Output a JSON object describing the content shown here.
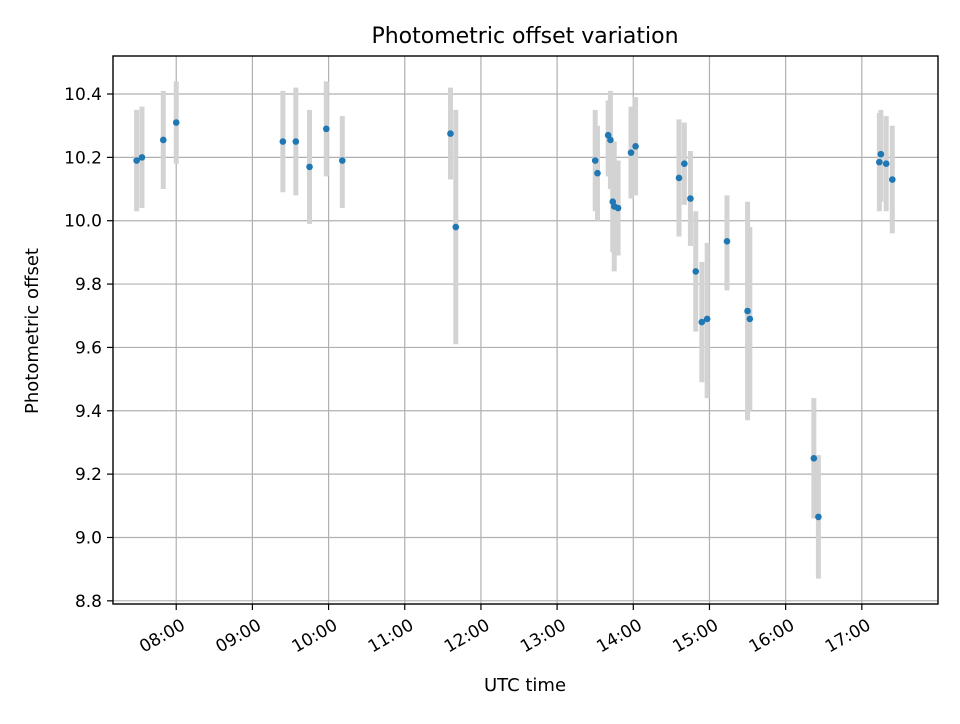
{
  "chart_data": {
    "type": "scatter",
    "title": "Photometric offset variation",
    "xlabel": "UTC time",
    "ylabel": "Photometric offset",
    "x_unit": "hours UTC",
    "xlim": [
      7.17,
      18.0
    ],
    "ylim": [
      8.79,
      10.52
    ],
    "x_ticks": [
      {
        "value": 8,
        "label": "08:00"
      },
      {
        "value": 9,
        "label": "09:00"
      },
      {
        "value": 10,
        "label": "10:00"
      },
      {
        "value": 11,
        "label": "11:00"
      },
      {
        "value": 12,
        "label": "12:00"
      },
      {
        "value": 13,
        "label": "13:00"
      },
      {
        "value": 14,
        "label": "14:00"
      },
      {
        "value": 15,
        "label": "15:00"
      },
      {
        "value": 16,
        "label": "16:00"
      },
      {
        "value": 17,
        "label": "17:00"
      }
    ],
    "y_ticks": [
      {
        "value": 8.8,
        "label": "8.8"
      },
      {
        "value": 9.0,
        "label": "9.0"
      },
      {
        "value": 9.2,
        "label": "9.2"
      },
      {
        "value": 9.4,
        "label": "9.4"
      },
      {
        "value": 9.6,
        "label": "9.6"
      },
      {
        "value": 9.8,
        "label": "9.8"
      },
      {
        "value": 10.0,
        "label": "10.0"
      },
      {
        "value": 10.2,
        "label": "10.2"
      },
      {
        "value": 10.4,
        "label": "10.4"
      }
    ],
    "grid": true,
    "marker_color": "#1f77b4",
    "errorbar_color": "#d3d3d3",
    "points": [
      {
        "x": 7.48,
        "y": 10.19,
        "err_low": 10.03,
        "err_high": 10.35
      },
      {
        "x": 7.55,
        "y": 10.2,
        "err_low": 10.04,
        "err_high": 10.36
      },
      {
        "x": 7.83,
        "y": 10.255,
        "err_low": 10.1,
        "err_high": 10.41
      },
      {
        "x": 8.0,
        "y": 10.31,
        "err_low": 10.18,
        "err_high": 10.44
      },
      {
        "x": 9.4,
        "y": 10.25,
        "err_low": 10.09,
        "err_high": 10.41
      },
      {
        "x": 9.57,
        "y": 10.25,
        "err_low": 10.08,
        "err_high": 10.42
      },
      {
        "x": 9.75,
        "y": 10.17,
        "err_low": 9.99,
        "err_high": 10.35
      },
      {
        "x": 9.97,
        "y": 10.29,
        "err_low": 10.14,
        "err_high": 10.44
      },
      {
        "x": 10.18,
        "y": 10.19,
        "err_low": 10.04,
        "err_high": 10.33
      },
      {
        "x": 11.6,
        "y": 10.275,
        "err_low": 10.13,
        "err_high": 10.42
      },
      {
        "x": 11.67,
        "y": 9.98,
        "err_low": 9.61,
        "err_high": 10.35
      },
      {
        "x": 13.5,
        "y": 10.19,
        "err_low": 10.03,
        "err_high": 10.35
      },
      {
        "x": 13.53,
        "y": 10.15,
        "err_low": 10.0,
        "err_high": 10.3
      },
      {
        "x": 13.67,
        "y": 10.27,
        "err_low": 10.14,
        "err_high": 10.38
      },
      {
        "x": 13.7,
        "y": 10.255,
        "err_low": 10.1,
        "err_high": 10.41
      },
      {
        "x": 13.73,
        "y": 10.06,
        "err_low": 9.9,
        "err_high": 10.21
      },
      {
        "x": 13.75,
        "y": 10.045,
        "err_low": 9.84,
        "err_high": 10.25
      },
      {
        "x": 13.8,
        "y": 10.04,
        "err_low": 9.89,
        "err_high": 10.19
      },
      {
        "x": 13.97,
        "y": 10.215,
        "err_low": 10.07,
        "err_high": 10.36
      },
      {
        "x": 14.03,
        "y": 10.235,
        "err_low": 10.08,
        "err_high": 10.39
      },
      {
        "x": 14.6,
        "y": 10.135,
        "err_low": 9.95,
        "err_high": 10.32
      },
      {
        "x": 14.67,
        "y": 10.18,
        "err_low": 10.05,
        "err_high": 10.31
      },
      {
        "x": 14.75,
        "y": 10.07,
        "err_low": 9.92,
        "err_high": 10.22
      },
      {
        "x": 14.82,
        "y": 9.84,
        "err_low": 9.65,
        "err_high": 10.03
      },
      {
        "x": 14.9,
        "y": 9.68,
        "err_low": 9.49,
        "err_high": 9.87
      },
      {
        "x": 14.97,
        "y": 9.69,
        "err_low": 9.44,
        "err_high": 9.93
      },
      {
        "x": 15.23,
        "y": 9.935,
        "err_low": 9.78,
        "err_high": 10.08
      },
      {
        "x": 15.5,
        "y": 9.715,
        "err_low": 9.37,
        "err_high": 10.06
      },
      {
        "x": 15.53,
        "y": 9.69,
        "err_low": 9.4,
        "err_high": 9.98
      },
      {
        "x": 16.37,
        "y": 9.25,
        "err_low": 9.06,
        "err_high": 9.44
      },
      {
        "x": 16.43,
        "y": 9.065,
        "err_low": 8.87,
        "err_high": 9.26
      },
      {
        "x": 17.23,
        "y": 10.185,
        "err_low": 10.03,
        "err_high": 10.34
      },
      {
        "x": 17.25,
        "y": 10.21,
        "err_low": 10.06,
        "err_high": 10.35
      },
      {
        "x": 17.32,
        "y": 10.18,
        "err_low": 10.03,
        "err_high": 10.33
      },
      {
        "x": 17.4,
        "y": 10.13,
        "err_low": 9.96,
        "err_high": 10.3
      }
    ]
  }
}
